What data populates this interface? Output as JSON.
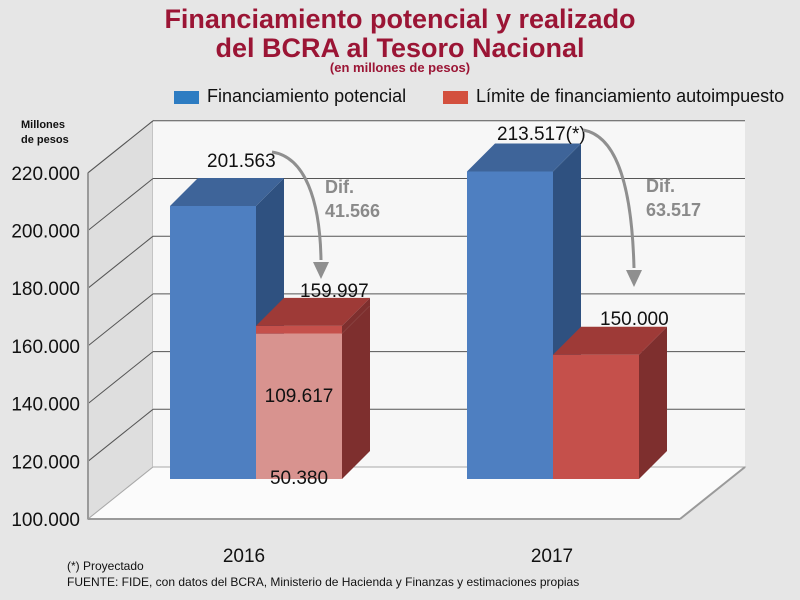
{
  "title": {
    "line1": "Financiamiento potencial y realizado",
    "line2": "del BCRA al Tesoro Nacional",
    "subtitle": "(en millones de pesos)"
  },
  "chart_data": {
    "type": "bar",
    "ylabel_lines": [
      "Millones",
      "de pesos"
    ],
    "ylim": [
      100000,
      220000
    ],
    "yticks": [
      100000,
      120000,
      140000,
      160000,
      180000,
      200000,
      220000
    ],
    "ytick_labels": [
      "100.000",
      "120.000",
      "140.000",
      "160.000",
      "180.000",
      "200.000",
      "220.000"
    ],
    "categories": [
      "2016",
      "2017"
    ],
    "legend": [
      "Financiamiento potencial",
      "Límite de financiamiento autoimpuesto"
    ],
    "series": [
      {
        "name": "Financiamiento potencial",
        "values": [
          201563,
          213517
        ]
      },
      {
        "name": "Límite de financiamiento autoimpuesto",
        "values": [
          159997,
          150000
        ],
        "segments_2016": [
          50380,
          109617
        ]
      }
    ],
    "labels": {
      "pot_2016": "201.563",
      "pot_2017": "213.517(*)",
      "lim_2016": "159.997",
      "lim_2017": "150.000",
      "seg_low_2016": "50.380",
      "seg_high_2016": "109.617"
    },
    "annotations": [
      {
        "line1": "Dif.",
        "line2": "41.566"
      },
      {
        "line1": "Dif.",
        "line2": "63.517"
      }
    ],
    "colors": {
      "blue_front": "#4e7fc1",
      "blue_side": "#2f5180",
      "blue_top": "#3e6499",
      "red_front": "#c5504b",
      "red_side": "#7e2f2e",
      "red_top": "#9e3a37",
      "pink_front": "#d8938f",
      "legend_blue": "#2d7cc2",
      "legend_red": "#d3503e",
      "arrow": "#8f8f8f",
      "dif_text": "#8a8a8a"
    }
  },
  "footnote": "(*) Proyectado",
  "source": "FUENTE: FIDE, con datos del BCRA, Ministerio de Hacienda y Finanzas y estimaciones propias"
}
